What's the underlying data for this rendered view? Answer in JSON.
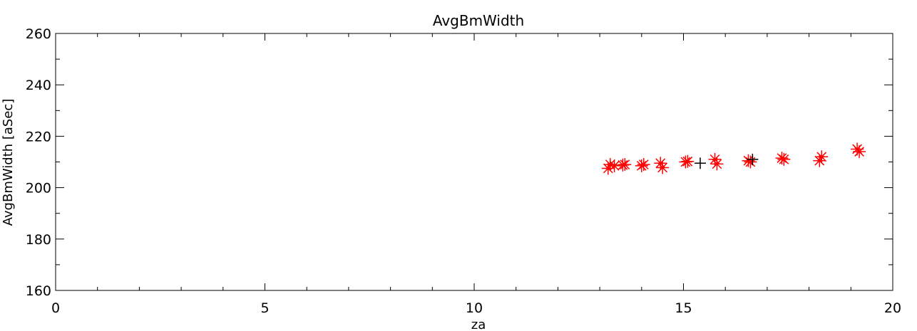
{
  "chart_data": {
    "type": "scatter",
    "title": "AvgBmWidth",
    "xlabel": "za",
    "ylabel": "AvgBmWidth [aSec]",
    "xlim": [
      0,
      20
    ],
    "ylim": [
      160,
      260
    ],
    "xticks": [
      0,
      5,
      10,
      15,
      20
    ],
    "yticks": [
      160,
      180,
      200,
      220,
      240,
      260
    ],
    "grid": false,
    "series": [
      {
        "marker": "asterisk",
        "color": "#ff0000",
        "points": [
          {
            "x": 13.2,
            "y": 207.5
          },
          {
            "x": 13.25,
            "y": 209.0
          },
          {
            "x": 13.35,
            "y": 208.5
          },
          {
            "x": 13.55,
            "y": 208.8
          },
          {
            "x": 13.6,
            "y": 209.0
          },
          {
            "x": 14.0,
            "y": 208.5
          },
          {
            "x": 14.05,
            "y": 209.0
          },
          {
            "x": 14.45,
            "y": 209.5
          },
          {
            "x": 14.5,
            "y": 207.8
          },
          {
            "x": 15.05,
            "y": 210.0
          },
          {
            "x": 15.1,
            "y": 210.2
          },
          {
            "x": 15.75,
            "y": 211.0
          },
          {
            "x": 15.8,
            "y": 209.2
          },
          {
            "x": 16.55,
            "y": 210.5
          },
          {
            "x": 16.6,
            "y": 210.0
          },
          {
            "x": 17.35,
            "y": 211.5
          },
          {
            "x": 17.4,
            "y": 211.0
          },
          {
            "x": 18.25,
            "y": 210.5
          },
          {
            "x": 18.3,
            "y": 212.0
          },
          {
            "x": 19.15,
            "y": 215.0
          },
          {
            "x": 19.2,
            "y": 214.0
          }
        ]
      },
      {
        "marker": "plus",
        "color": "#000000",
        "points": [
          {
            "x": 15.4,
            "y": 209.5
          },
          {
            "x": 16.65,
            "y": 211.0
          }
        ]
      }
    ]
  }
}
